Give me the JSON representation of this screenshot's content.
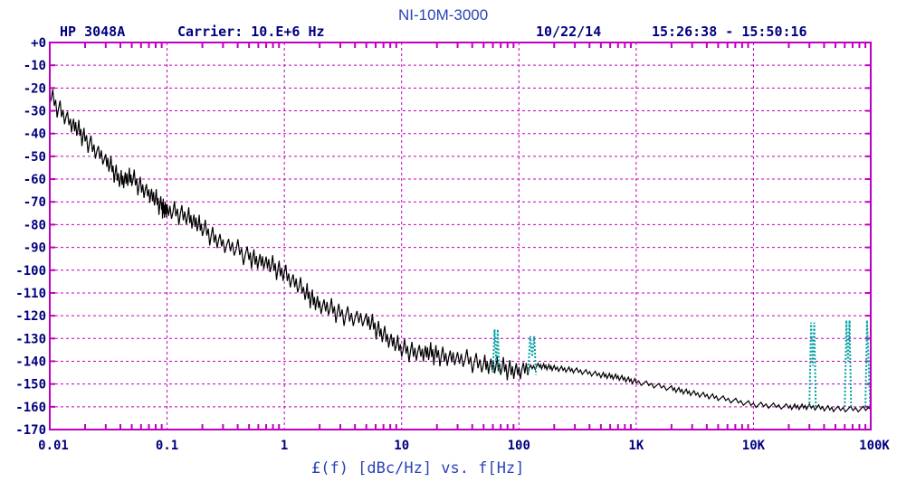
{
  "header": {
    "instrument": "HP 3048A",
    "carrier": "Carrier: 10.E+6 Hz",
    "date": "10/22/14",
    "time_range": "15:26:38 - 15:50:16"
  },
  "colors": {
    "grid": "#c000c0",
    "frame": "#c000c0",
    "text": "#00007f",
    "trace": "#000000",
    "spurs": "#00a0a0",
    "title": "#2a44b6"
  },
  "chart_data": {
    "type": "line",
    "title": "NI-10M-3000",
    "xlabel": "£(f) [dBc/Hz] vs. f[Hz]",
    "ylabel": "",
    "xscale": "log",
    "xlim": [
      0.01,
      100000
    ],
    "ylim": [
      -170,
      0
    ],
    "grid": true,
    "x_ticks": [
      "0.01",
      "0.1",
      "1",
      "10",
      "100",
      "1K",
      "10K",
      "100K"
    ],
    "y_ticks": [
      "+0",
      "-10",
      "-20",
      "-30",
      "-40",
      "-50",
      "-60",
      "-70",
      "-80",
      "-90",
      "-100",
      "-110",
      "-120",
      "-130",
      "-140",
      "-150",
      "-160",
      "-170"
    ],
    "series": [
      {
        "x": [
          0.01,
          0.015,
          0.02,
          0.03,
          0.04,
          0.05,
          0.07,
          0.09,
          0.1,
          0.15,
          0.2,
          0.3,
          0.5,
          0.7,
          1,
          1.5,
          2,
          3,
          5,
          7,
          10,
          15,
          20,
          30,
          50,
          70,
          100,
          150,
          200,
          300,
          500,
          700,
          1000,
          2000,
          3000,
          5000,
          10000,
          20000,
          30000,
          50000,
          100000
        ],
        "y": [
          -24,
          -35,
          -42,
          -52,
          -60,
          -60,
          -66,
          -72,
          -74,
          -76,
          -82,
          -88,
          -94,
          -97,
          -101,
          -110,
          -115,
          -119,
          -122,
          -128,
          -135,
          -136,
          -137,
          -139,
          -141,
          -143,
          -144,
          -142,
          -143,
          -144,
          -146,
          -147,
          -149,
          -152,
          -154,
          -156,
          -159,
          -160,
          -160,
          -161,
          -161
        ]
      },
      {
        "x": [
          60,
          62,
          64,
          66,
          68,
          120,
          125,
          130,
          135,
          140,
          30000,
          31000,
          32000,
          33000,
          34000,
          60000,
          62000,
          64000,
          66000,
          68000,
          90000,
          93000,
          96000,
          99000
        ],
        "y": [
          -145,
          -126,
          -140,
          -126,
          -145,
          -145,
          -129,
          -138,
          -129,
          -146,
          -160,
          -123,
          -142,
          -123,
          -160,
          -160,
          -122,
          -140,
          -122,
          -160,
          -160,
          -122,
          -141,
          -160
        ]
      }
    ],
    "spur_line_style": "dotted"
  }
}
